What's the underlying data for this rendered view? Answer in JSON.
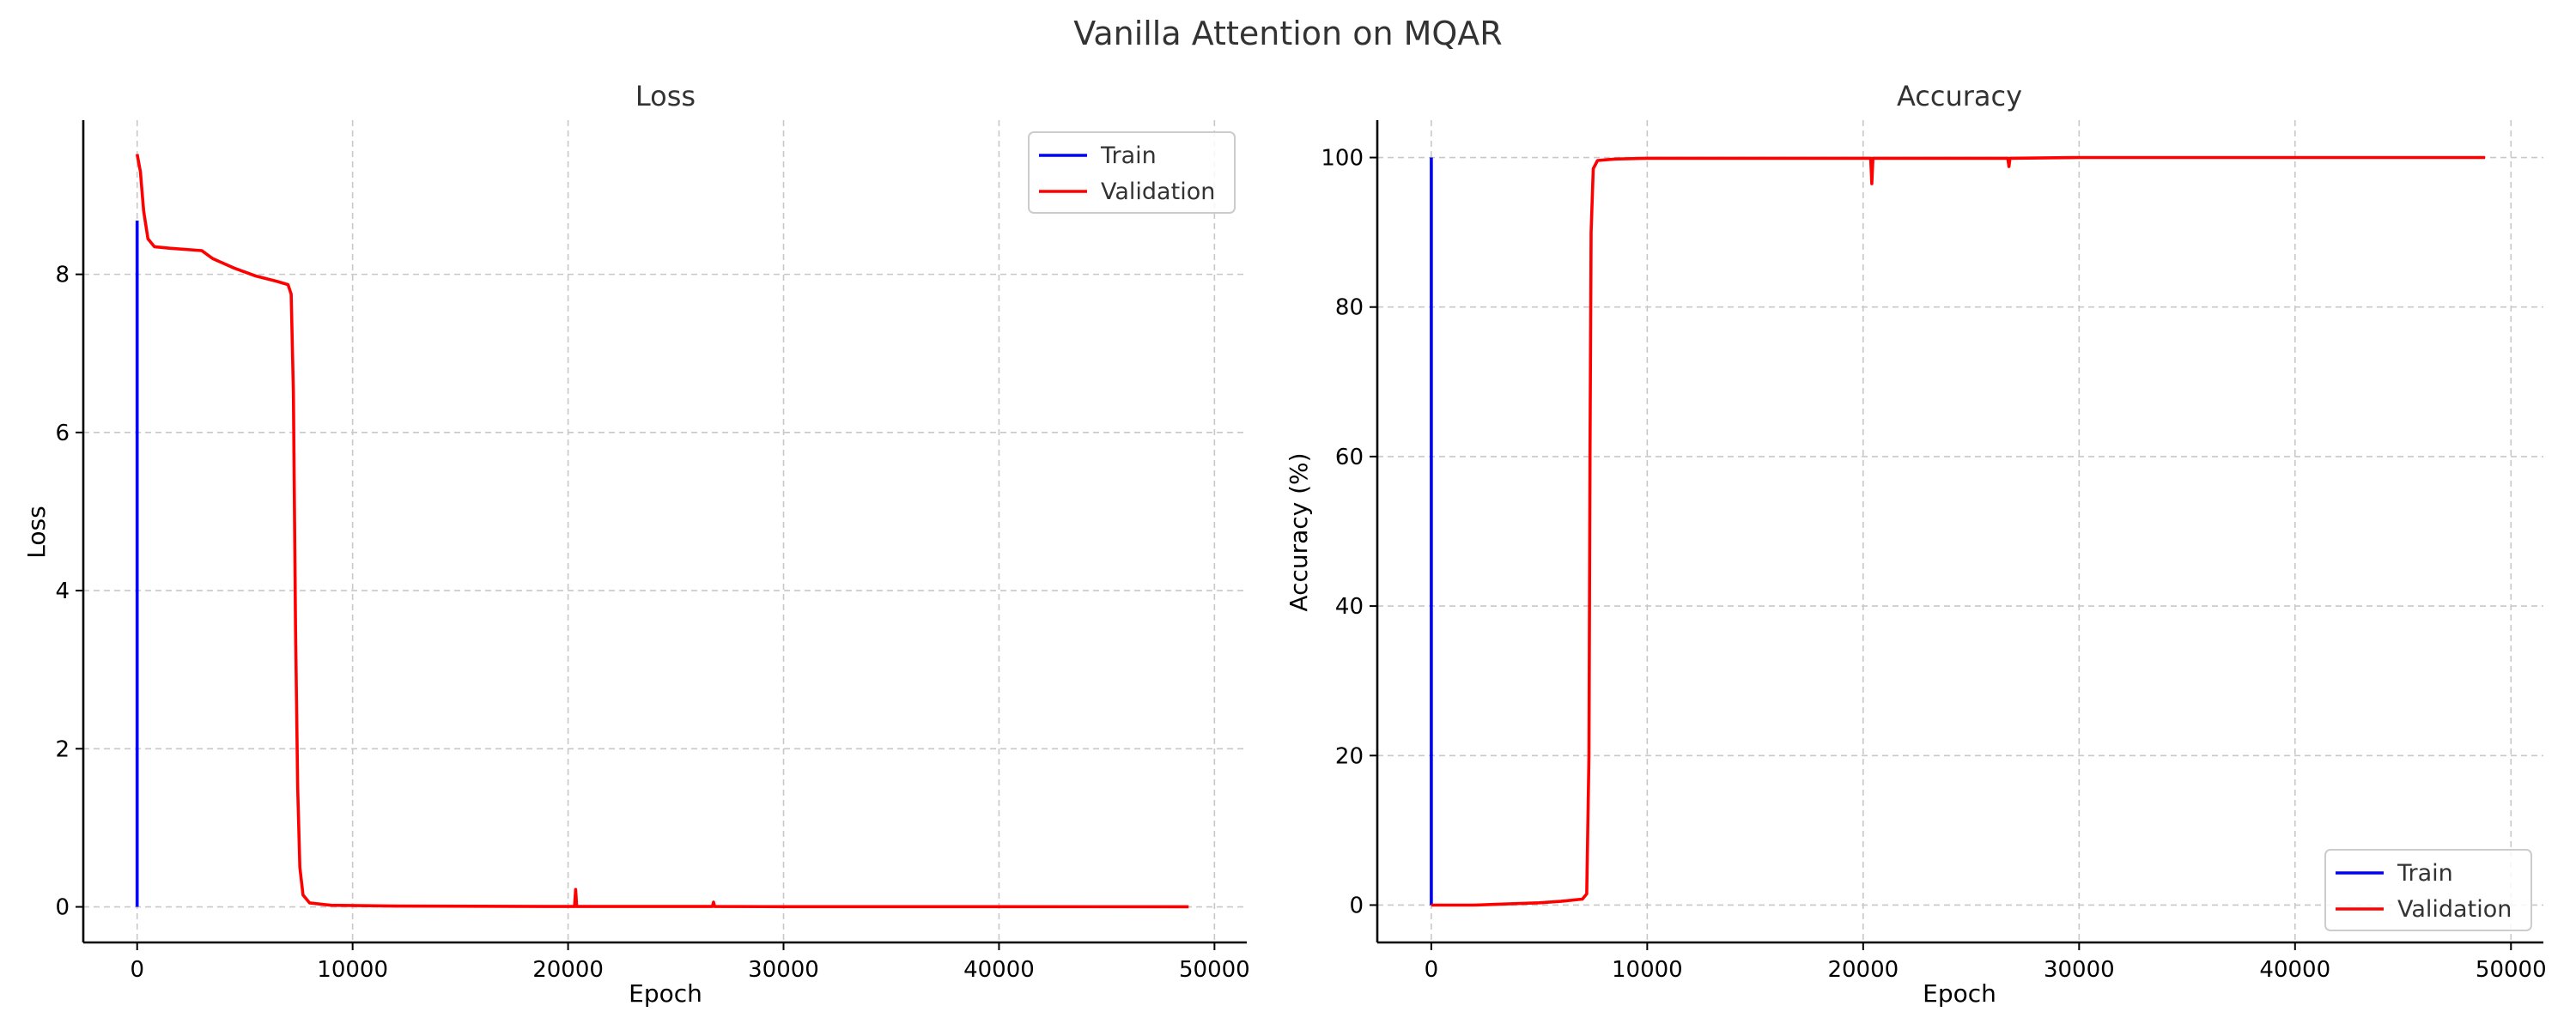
{
  "figure": {
    "title": "Vanilla Attention on MQAR"
  },
  "colors": {
    "train": "#0000ff",
    "validation": "#ff0000"
  },
  "chart_data": [
    {
      "type": "line",
      "title": "Loss",
      "xlabel": "Epoch",
      "ylabel": "Loss",
      "xlim": [
        -2500,
        51500
      ],
      "ylim": [
        -0.45,
        9.95
      ],
      "xticks": [
        0,
        10000,
        20000,
        30000,
        40000,
        50000
      ],
      "yticks": [
        0,
        2,
        4,
        6,
        8
      ],
      "grid": true,
      "legend_position": "top-right",
      "series": [
        {
          "name": "Train",
          "color": "#0000ff",
          "points": [
            [
              0,
              8.68
            ],
            [
              0,
              0.0
            ]
          ]
        },
        {
          "name": "Validation",
          "color": "#ff0000",
          "points": [
            [
              0,
              9.52
            ],
            [
              150,
              9.3
            ],
            [
              300,
              8.8
            ],
            [
              500,
              8.45
            ],
            [
              800,
              8.35
            ],
            [
              1500,
              8.33
            ],
            [
              3000,
              8.3
            ],
            [
              3500,
              8.2
            ],
            [
              4500,
              8.08
            ],
            [
              5500,
              7.98
            ],
            [
              6500,
              7.91
            ],
            [
              7000,
              7.87
            ],
            [
              7150,
              7.75
            ],
            [
              7250,
              6.5
            ],
            [
              7350,
              3.5
            ],
            [
              7450,
              1.5
            ],
            [
              7550,
              0.5
            ],
            [
              7700,
              0.15
            ],
            [
              8000,
              0.05
            ],
            [
              9000,
              0.02
            ],
            [
              12000,
              0.01
            ],
            [
              20300,
              0.005
            ],
            [
              20350,
              0.22
            ],
            [
              20400,
              0.005
            ],
            [
              26700,
              0.005
            ],
            [
              26750,
              0.06
            ],
            [
              26800,
              0.005
            ],
            [
              30000,
              0.003
            ],
            [
              48800,
              0.002
            ]
          ]
        }
      ]
    },
    {
      "type": "line",
      "title": "Accuracy",
      "xlabel": "Epoch",
      "ylabel": "Accuracy (%)",
      "xlim": [
        -2500,
        51500
      ],
      "ylim": [
        -5,
        105
      ],
      "xticks": [
        0,
        10000,
        20000,
        30000,
        40000,
        50000
      ],
      "yticks": [
        0,
        20,
        40,
        60,
        80,
        100
      ],
      "grid": true,
      "legend_position": "bottom-right",
      "series": [
        {
          "name": "Train",
          "color": "#0000ff",
          "points": [
            [
              0,
              0.0
            ],
            [
              0,
              100.0
            ]
          ]
        },
        {
          "name": "Validation",
          "color": "#ff0000",
          "points": [
            [
              0,
              0.0
            ],
            [
              2000,
              0.0
            ],
            [
              3000,
              0.1
            ],
            [
              4000,
              0.2
            ],
            [
              5000,
              0.3
            ],
            [
              6000,
              0.5
            ],
            [
              7000,
              0.8
            ],
            [
              7200,
              1.5
            ],
            [
              7300,
              20
            ],
            [
              7350,
              60
            ],
            [
              7400,
              90
            ],
            [
              7500,
              98.5
            ],
            [
              7700,
              99.6
            ],
            [
              8500,
              99.8
            ],
            [
              10000,
              99.9
            ],
            [
              20350,
              99.9
            ],
            [
              20400,
              96.5
            ],
            [
              20450,
              99.9
            ],
            [
              26700,
              99.9
            ],
            [
              26750,
              98.8
            ],
            [
              26800,
              99.9
            ],
            [
              30000,
              100.0
            ],
            [
              48800,
              100.0
            ]
          ]
        }
      ]
    }
  ]
}
